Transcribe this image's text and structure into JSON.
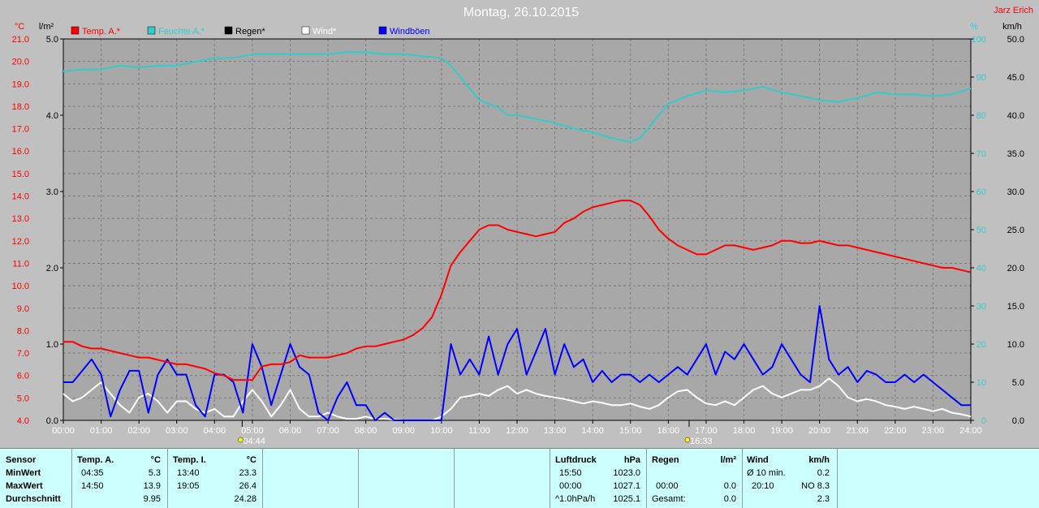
{
  "title": "Montag, 26.10.2015",
  "author": "Jarz Erich",
  "colors": {
    "bg": "#c0c0c0",
    "plot": "#a8a8a8",
    "grid": "#808080",
    "temp": "#ff0000",
    "humidity": "#33cccc",
    "rain": "#000000",
    "wind": "#ffffff",
    "gust": "#0000ff",
    "panel": "#ccffff"
  },
  "chart_data": {
    "type": "line",
    "grid": true,
    "legend_position": "top-left",
    "axes": {
      "temp": {
        "unit": "°C",
        "range": [
          4.0,
          21.0
        ],
        "ticks": [
          "4.0",
          "5.0",
          "6.0",
          "7.0",
          "8.0",
          "9.0",
          "10.0",
          "11.0",
          "12.0",
          "13.0",
          "14.0",
          "15.0",
          "16.0",
          "17.0",
          "18.0",
          "19.0",
          "20.0",
          "21.0"
        ]
      },
      "rain": {
        "unit": "l/m²",
        "range": [
          0.0,
          5.0
        ],
        "ticks": [
          "0.0",
          "1.0",
          "2.0",
          "3.0",
          "4.0",
          "5.0"
        ]
      },
      "humidity": {
        "unit": "%",
        "range": [
          0,
          100
        ],
        "ticks": [
          "0",
          "10",
          "20",
          "30",
          "40",
          "50",
          "60",
          "70",
          "80",
          "90",
          "100"
        ]
      },
      "wind": {
        "unit": "km/h",
        "range": [
          0,
          50
        ],
        "ticks": [
          "0.0",
          "5.0",
          "10.0",
          "15.0",
          "20.0",
          "25.0",
          "30.0",
          "35.0",
          "40.0",
          "45.0",
          "50.0"
        ]
      },
      "x": {
        "range": [
          0,
          24
        ],
        "ticks": [
          "00:00",
          "01:00",
          "02:00",
          "03:00",
          "04:00",
          "05:00",
          "06:00",
          "07:00",
          "08:00",
          "09:00",
          "10:00",
          "11:00",
          "12:00",
          "13:00",
          "14:00",
          "15:00",
          "16:00",
          "17:00",
          "18:00",
          "19:00",
          "20:00",
          "21:00",
          "22:00",
          "23:00",
          "24:00"
        ]
      }
    },
    "legend": [
      {
        "name": "Temp. A.*",
        "color": "#ff0000"
      },
      {
        "name": "Feuchte A.*",
        "color": "#33cccc"
      },
      {
        "name": "Regen*",
        "color": "#000000"
      },
      {
        "name": "Wind*",
        "color": "#ffffff"
      },
      {
        "name": "Windböen",
        "color": "#0000ff"
      }
    ],
    "sun_markers": [
      {
        "label": "04:44",
        "x": 4.73
      },
      {
        "label": "16:33",
        "x": 16.55
      }
    ],
    "series": [
      {
        "name": "Temp. A.*",
        "axis": "temp",
        "color": "#ff0000",
        "x": [
          0,
          0.25,
          0.5,
          0.75,
          1,
          1.25,
          1.5,
          1.75,
          2,
          2.25,
          2.5,
          2.75,
          3,
          3.25,
          3.5,
          3.75,
          4,
          4.25,
          4.5,
          4.75,
          5,
          5.25,
          5.5,
          5.75,
          6,
          6.25,
          6.5,
          6.75,
          7,
          7.25,
          7.5,
          7.75,
          8,
          8.25,
          8.5,
          8.75,
          9,
          9.25,
          9.5,
          9.75,
          10,
          10.25,
          10.5,
          10.75,
          11,
          11.25,
          11.5,
          11.75,
          12,
          12.25,
          12.5,
          12.75,
          13,
          13.25,
          13.5,
          13.75,
          14,
          14.25,
          14.5,
          14.75,
          15,
          15.25,
          15.5,
          15.75,
          16,
          16.25,
          16.5,
          16.75,
          17,
          17.25,
          17.5,
          17.75,
          18,
          18.25,
          18.5,
          18.75,
          19,
          19.25,
          19.5,
          19.75,
          20,
          20.25,
          20.5,
          20.75,
          21,
          21.25,
          21.5,
          21.75,
          22,
          22.25,
          22.5,
          22.75,
          23,
          23.25,
          23.5,
          23.75,
          24
        ],
        "y": [
          7.5,
          7.5,
          7.3,
          7.2,
          7.2,
          7.1,
          7.0,
          6.9,
          6.8,
          6.8,
          6.7,
          6.6,
          6.5,
          6.5,
          6.4,
          6.3,
          6.1,
          6.0,
          5.8,
          5.8,
          5.8,
          6.4,
          6.5,
          6.5,
          6.6,
          6.9,
          6.8,
          6.8,
          6.8,
          6.9,
          7.0,
          7.2,
          7.3,
          7.3,
          7.4,
          7.5,
          7.6,
          7.8,
          8.1,
          8.6,
          9.6,
          10.9,
          11.5,
          12.0,
          12.5,
          12.7,
          12.7,
          12.5,
          12.4,
          12.3,
          12.2,
          12.3,
          12.4,
          12.8,
          13.0,
          13.3,
          13.5,
          13.6,
          13.7,
          13.8,
          13.8,
          13.6,
          13.1,
          12.5,
          12.1,
          11.8,
          11.6,
          11.4,
          11.4,
          11.6,
          11.8,
          11.8,
          11.7,
          11.6,
          11.7,
          11.8,
          12.0,
          12.0,
          11.9,
          11.9,
          12.0,
          11.9,
          11.8,
          11.8,
          11.7,
          11.6,
          11.5,
          11.4,
          11.3,
          11.2,
          11.1,
          11.0,
          10.9,
          10.8,
          10.8,
          10.7,
          10.6
        ]
      },
      {
        "name": "Feuchte A.*",
        "axis": "humidity",
        "color": "#33cccc",
        "x": [
          0,
          0.5,
          1,
          1.5,
          2,
          2.5,
          3,
          3.5,
          4,
          4.5,
          5,
          5.5,
          6,
          6.5,
          7,
          7.5,
          8,
          8.5,
          9,
          9.5,
          10,
          10.25,
          10.5,
          10.75,
          11,
          11.25,
          11.5,
          11.75,
          12,
          12.5,
          13,
          13.5,
          14,
          14.5,
          15,
          15.25,
          15.5,
          15.75,
          16,
          16.5,
          17,
          17.5,
          18,
          18.5,
          19,
          19.5,
          20,
          20.5,
          21,
          21.5,
          22,
          22.5,
          23,
          23.5,
          24
        ],
        "y": [
          91.5,
          92,
          92,
          93,
          92.5,
          93,
          93,
          94,
          95,
          95,
          96,
          96,
          96,
          96,
          96,
          96.5,
          96.5,
          96,
          96,
          95.5,
          95,
          93,
          90,
          87,
          84,
          83,
          82,
          80,
          80,
          79,
          78,
          76.5,
          75.5,
          74,
          73,
          74,
          77,
          80,
          83,
          85,
          86.5,
          86,
          86.5,
          87.5,
          86,
          85,
          84,
          83.5,
          84.5,
          86,
          85.5,
          85.5,
          85,
          85.5,
          87
        ]
      },
      {
        "name": "Regen*",
        "axis": "rain",
        "color": "#000000",
        "x": [
          0,
          24
        ],
        "y": [
          0.0,
          0.0
        ]
      },
      {
        "name": "Wind*",
        "axis": "wind",
        "color": "#ffffff",
        "x": [
          0,
          0.25,
          0.5,
          0.75,
          1,
          1.25,
          1.5,
          1.75,
          2,
          2.25,
          2.5,
          2.75,
          3,
          3.25,
          3.5,
          3.75,
          4,
          4.25,
          4.5,
          4.75,
          5,
          5.25,
          5.5,
          5.75,
          6,
          6.25,
          6.5,
          6.75,
          7,
          7.25,
          7.5,
          7.75,
          8,
          8.25,
          8.5,
          8.75,
          9,
          9.25,
          9.5,
          9.75,
          10,
          10.25,
          10.5,
          10.75,
          11,
          11.25,
          11.5,
          11.75,
          12,
          12.25,
          12.5,
          12.75,
          13,
          13.25,
          13.5,
          13.75,
          14,
          14.25,
          14.5,
          14.75,
          15,
          15.25,
          15.5,
          15.75,
          16,
          16.25,
          16.5,
          16.75,
          17,
          17.25,
          17.5,
          17.75,
          18,
          18.25,
          18.5,
          18.75,
          19,
          19.25,
          19.5,
          19.75,
          20,
          20.25,
          20.5,
          20.75,
          21,
          21.25,
          21.5,
          21.75,
          22,
          22.25,
          22.5,
          22.75,
          23,
          23.25,
          23.5,
          23.75,
          24
        ],
        "y": [
          3.5,
          2.5,
          3,
          4,
          5,
          3.5,
          2,
          1,
          3,
          3.5,
          2.5,
          1,
          2.5,
          2.5,
          1.5,
          1,
          1.5,
          0.5,
          0.5,
          2.5,
          4,
          2.5,
          0.5,
          2,
          4,
          1.5,
          0.5,
          0.5,
          1,
          0.5,
          0.2,
          0.2,
          0.5,
          0.2,
          0.2,
          0.1,
          0,
          0,
          0,
          0,
          0.5,
          1.5,
          3,
          3.2,
          3.5,
          3.2,
          4,
          4.5,
          3.5,
          4,
          3.5,
          3.2,
          3,
          2.8,
          2.5,
          2.2,
          2.5,
          2.3,
          2,
          2,
          2.2,
          1.8,
          1.5,
          2,
          3,
          3.8,
          4,
          3,
          2.2,
          2,
          2.5,
          2,
          3,
          4,
          4.5,
          3.5,
          3,
          3.5,
          4,
          4,
          4.5,
          5.5,
          4.5,
          3,
          2.5,
          2.8,
          2.5,
          2,
          1.8,
          1.5,
          1.8,
          1.5,
          1.2,
          1.5,
          1,
          0.8,
          0.5
        ]
      },
      {
        "name": "Windböen",
        "axis": "wind",
        "color": "#0000ff",
        "x": [
          0,
          0.25,
          0.5,
          0.75,
          1,
          1.25,
          1.5,
          1.75,
          2,
          2.25,
          2.5,
          2.75,
          3,
          3.25,
          3.5,
          3.75,
          4,
          4.25,
          4.5,
          4.75,
          5,
          5.25,
          5.5,
          5.75,
          6,
          6.25,
          6.5,
          6.75,
          7,
          7.25,
          7.5,
          7.75,
          8,
          8.25,
          8.5,
          8.75,
          9,
          9.25,
          9.5,
          9.75,
          10,
          10.25,
          10.5,
          10.75,
          11,
          11.25,
          11.5,
          11.75,
          12,
          12.25,
          12.5,
          12.75,
          13,
          13.25,
          13.5,
          13.75,
          14,
          14.25,
          14.5,
          14.75,
          15,
          15.25,
          15.5,
          15.75,
          16,
          16.25,
          16.5,
          16.75,
          17,
          17.25,
          17.5,
          17.75,
          18,
          18.25,
          18.5,
          18.75,
          19,
          19.25,
          19.5,
          19.75,
          20,
          20.25,
          20.5,
          20.75,
          21,
          21.25,
          21.5,
          21.75,
          22,
          22.25,
          22.5,
          22.75,
          23,
          23.25,
          23.5,
          23.75,
          24
        ],
        "y": [
          5,
          5,
          6.5,
          8,
          6,
          0.5,
          4,
          6.5,
          6.5,
          1,
          6,
          8,
          6,
          6,
          2,
          0.5,
          6,
          6,
          5,
          1,
          10,
          7,
          2,
          6,
          10,
          7,
          6,
          1,
          0,
          3,
          5,
          2,
          2,
          0,
          1,
          0,
          0,
          0,
          0,
          0,
          0,
          10,
          6,
          8,
          6,
          11,
          6,
          10,
          12,
          6,
          9,
          12,
          6,
          10,
          7,
          8,
          5,
          6.5,
          5,
          6,
          6,
          5,
          6,
          5,
          6,
          7,
          6,
          8,
          10,
          6,
          9,
          8,
          10,
          8,
          6,
          7,
          10,
          8,
          6,
          5,
          15,
          8,
          6,
          7,
          5,
          6.5,
          6,
          5,
          5,
          6,
          5,
          6,
          5,
          4,
          3,
          2,
          2
        ]
      }
    ]
  },
  "panel": {
    "sensor": {
      "label": "Sensor",
      "rows": [
        "MinWert",
        "MaxWert",
        "Durchschnitt"
      ]
    },
    "temp_a": {
      "label": "Temp. A.",
      "unit": "°C",
      "min_time": "04:35",
      "min_val": "5.3",
      "max_time": "14:50",
      "max_val": "13.9",
      "avg": "9.95"
    },
    "temp_i": {
      "label": "Temp. I.",
      "unit": "°C",
      "min_time": "13:40",
      "min_val": "23.3",
      "max_time": "19:05",
      "max_val": "26.4",
      "avg": "24.28"
    },
    "pressure": {
      "label": "Luftdruck",
      "unit": "hPa",
      "min_time": "15:50",
      "min_val": "1023.0",
      "max_time": "00:00",
      "max_val": "1027.1",
      "trend_label": "^1.0hPa/h",
      "trend_val": "1025.1"
    },
    "rain": {
      "label": "Regen",
      "unit": "l/m²",
      "max_time": "00:00",
      "max_val": "0.0",
      "total_label": "Gesamt:",
      "total_val": "0.0"
    },
    "wind": {
      "label": "Wind",
      "unit": "km/h",
      "avg_label": "Ø 10 min.",
      "avg_val": "0.2",
      "max_time": "20:10",
      "max_val": "NO 8.3",
      "avg": "2.3"
    }
  }
}
